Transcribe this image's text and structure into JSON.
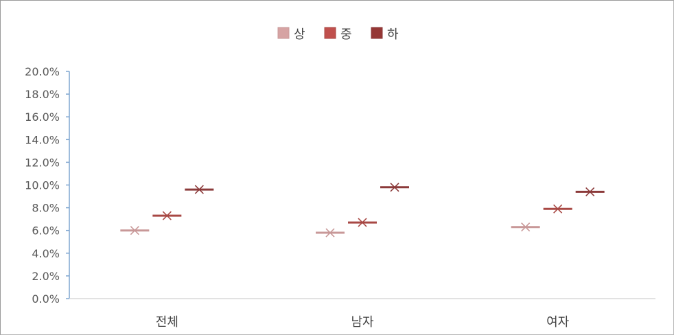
{
  "chart_data": {
    "type": "scatter",
    "categories": [
      "전체",
      "남자",
      "여자"
    ],
    "series": [
      {
        "name": "상",
        "values": [
          6.0,
          5.8,
          6.3
        ],
        "color": "#d6a3a3",
        "lineColor": "#c89898"
      },
      {
        "name": "중",
        "values": [
          7.3,
          6.7,
          7.9
        ],
        "color": "#c0504d",
        "lineColor": "#a84844"
      },
      {
        "name": "하",
        "values": [
          9.6,
          9.8,
          9.4
        ],
        "color": "#953735",
        "lineColor": "#8b3a3a"
      }
    ],
    "ylim": [
      0,
      20
    ],
    "yticks": [
      "0.0%",
      "2.0%",
      "4.0%",
      "6.0%",
      "8.0%",
      "10.0%",
      "12.0%",
      "14.0%",
      "16.0%",
      "18.0%",
      "20.0%"
    ],
    "legend_position": "top-center",
    "axis_color": "#7fa6d0",
    "grid": false
  }
}
